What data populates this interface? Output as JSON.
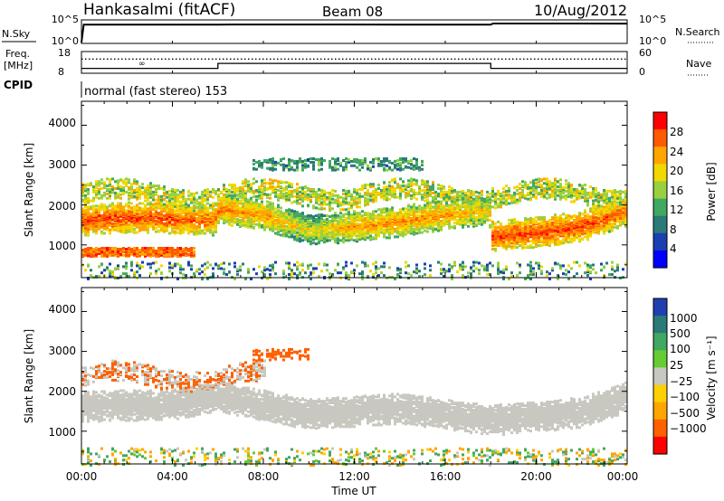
{
  "header": {
    "station": "Hankasalmi (fitACF)",
    "beam": "Beam 08",
    "date": "10/Aug/2012"
  },
  "top_strip": {
    "nsky_label": "N.Sky",
    "nsky_ticks": [
      "10^5",
      "10^0"
    ],
    "nsearch_label": "N.Search",
    "nsearch_ticks": [
      "10^5",
      "10^0"
    ],
    "freq_label_1": "Freq.",
    "freq_label_2": "[MHz]",
    "freq_ticks": [
      "18",
      "8"
    ],
    "nave_label": "Nave",
    "nave_ticks": [
      "60",
      "0"
    ],
    "cpid_label": "CPID",
    "cpid_text": "normal (fast stereo) 153"
  },
  "x_axis": {
    "label": "Time UT",
    "ticks": [
      "00:00",
      "04:00",
      "08:00",
      "12:00",
      "16:00",
      "20:00",
      "00:00"
    ],
    "range_hours": [
      0,
      24
    ]
  },
  "power_panel": {
    "ylabel": "Slant Range [km]",
    "yticks": [
      "4000",
      "3000",
      "2000",
      "1000"
    ],
    "colorbar_label": "Power [dB]",
    "colorbar_ticks": [
      "28",
      "24",
      "20",
      "16",
      "12",
      "8",
      "4"
    ],
    "colorbar_colors": [
      "#ff0000",
      "#ff5a00",
      "#ffa500",
      "#f0d800",
      "#98d040",
      "#40a860",
      "#2a7a78",
      "#1a40b0",
      "#0000ff"
    ]
  },
  "velocity_panel": {
    "ylabel": "Slant Range [km]",
    "yticks": [
      "4000",
      "3000",
      "2000",
      "1000"
    ],
    "colorbar_label": "Velocity [m s⁻¹]",
    "colorbar_ticks": [
      "1000",
      "500",
      "100",
      "25",
      "−25",
      "−100",
      "−500",
      "−1000"
    ],
    "colorbar_colors": [
      "#2040b0",
      "#2a7a78",
      "#40a860",
      "#66cc33",
      "#c8c8c0",
      "#ffd000",
      "#ffa500",
      "#ff6000",
      "#ff0000"
    ]
  },
  "chart_data": [
    {
      "type": "line",
      "title": "N.Sky / N.Search",
      "x": [
        0,
        0.1,
        2,
        6,
        10,
        14,
        18,
        18.1,
        20,
        24
      ],
      "series": [
        {
          "name": "N.Sky",
          "values": [
            1,
            30000,
            32000,
            32000,
            33000,
            31000,
            32000,
            60000,
            58000,
            57000
          ]
        }
      ],
      "ylim": [
        1,
        100000
      ]
    },
    {
      "type": "line",
      "title": "Freq. / Nave",
      "x": [
        0,
        6,
        6,
        18,
        18,
        24
      ],
      "series": [
        {
          "name": "Freq.",
          "values": [
            10,
            10,
            12.5,
            12.5,
            10,
            10
          ]
        },
        {
          "name": "Nave",
          "values": [
            40,
            40,
            40,
            40,
            40,
            40
          ]
        }
      ],
      "ylim_freq": [
        8,
        18
      ],
      "ylim_nave": [
        0,
        60
      ]
    },
    {
      "type": "heatmap",
      "title": "Power [dB]",
      "xlabel": "Time UT",
      "ylabel": "Slant Range [km]",
      "xlim": [
        0,
        24
      ],
      "ylim": [
        180,
        4600
      ],
      "zlim": [
        0,
        30
      ],
      "main_band": {
        "time": [
          0,
          2,
          4,
          5.8,
          6,
          8,
          10,
          12,
          14,
          16,
          17.9,
          18,
          20,
          22,
          24
        ],
        "center_km": [
          1650,
          1720,
          1700,
          1650,
          1950,
          1780,
          1400,
          1500,
          1620,
          1800,
          1900,
          1250,
          1350,
          1500,
          1900
        ],
        "power_db": [
          28,
          28,
          28,
          26,
          26,
          24,
          20,
          24,
          25,
          24,
          22,
          28,
          28,
          28,
          26
        ]
      },
      "upper_echo": {
        "time_range": [
          0,
          24
        ],
        "center_km": 2300,
        "power_db": 18
      },
      "far_echo": {
        "time_range": [
          7.5,
          15
        ],
        "center_km": 3050,
        "power_db": 12
      },
      "near_echo": {
        "time_range": [
          0,
          5
        ],
        "center_km": 850,
        "power_db": 26
      }
    },
    {
      "type": "heatmap",
      "title": "Velocity [m s-1]",
      "xlabel": "Time UT",
      "ylabel": "Slant Range [km]",
      "xlim": [
        0,
        24
      ],
      "ylim": [
        180,
        4600
      ],
      "zlim": [
        -1000,
        1000
      ],
      "main_band": {
        "time": [
          0,
          4,
          6,
          10,
          14,
          18,
          22,
          24
        ],
        "center_km": [
          1650,
          1700,
          1900,
          1450,
          1600,
          1300,
          1500,
          1900
        ],
        "velocity_ms": [
          0,
          0,
          0,
          0,
          0,
          0,
          0,
          0
        ]
      },
      "upper_echo": {
        "time_range": [
          0,
          8
        ],
        "center_km": 2400,
        "velocity_ms": -300
      },
      "far_echo": {
        "time_range": [
          7.5,
          10
        ],
        "center_km": 2950,
        "velocity_ms": -300
      }
    }
  ]
}
